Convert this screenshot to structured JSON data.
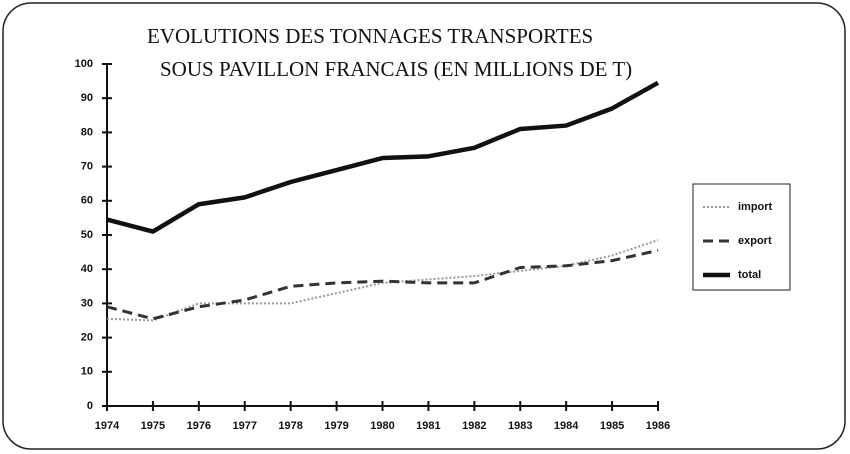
{
  "chart_data": {
    "type": "line",
    "title_lines": [
      "EVOLUTIONS DES TONNAGES TRANSPORTES",
      "SOUS PAVILLON FRANCAIS (EN MILLIONS DE T)"
    ],
    "x": [
      1974,
      1975,
      1976,
      1977,
      1978,
      1979,
      1980,
      1981,
      1982,
      1983,
      1984,
      1985,
      1986
    ],
    "xlim": [
      1974,
      1986
    ],
    "xticks": [
      1974,
      1975,
      1976,
      1977,
      1978,
      1979,
      1980,
      1981,
      1982,
      1983,
      1984,
      1985,
      1986
    ],
    "ylim": [
      0,
      100
    ],
    "yticks": [
      0,
      10,
      20,
      30,
      40,
      50,
      60,
      70,
      80,
      90,
      100
    ],
    "grid": false,
    "legend": "right",
    "series": [
      {
        "name": "import",
        "color": "#999999",
        "line_style": "dotted",
        "width": 2,
        "values": [
          25.5,
          25,
          30,
          30,
          30,
          33,
          36,
          37,
          38,
          39.5,
          41,
          44,
          48.5
        ]
      },
      {
        "name": "export",
        "color": "#333333",
        "line_style": "dashed",
        "width": 3,
        "values": [
          29,
          25.5,
          29,
          31,
          35,
          36,
          36.5,
          36,
          36,
          40.5,
          41,
          42.5,
          45.5
        ]
      },
      {
        "name": "total",
        "color": "#111111",
        "line_style": "solid",
        "width": 4.5,
        "values": [
          54.5,
          51,
          59,
          61,
          65.5,
          69,
          72.5,
          73,
          75.5,
          81,
          82,
          87,
          94.5
        ]
      }
    ]
  }
}
